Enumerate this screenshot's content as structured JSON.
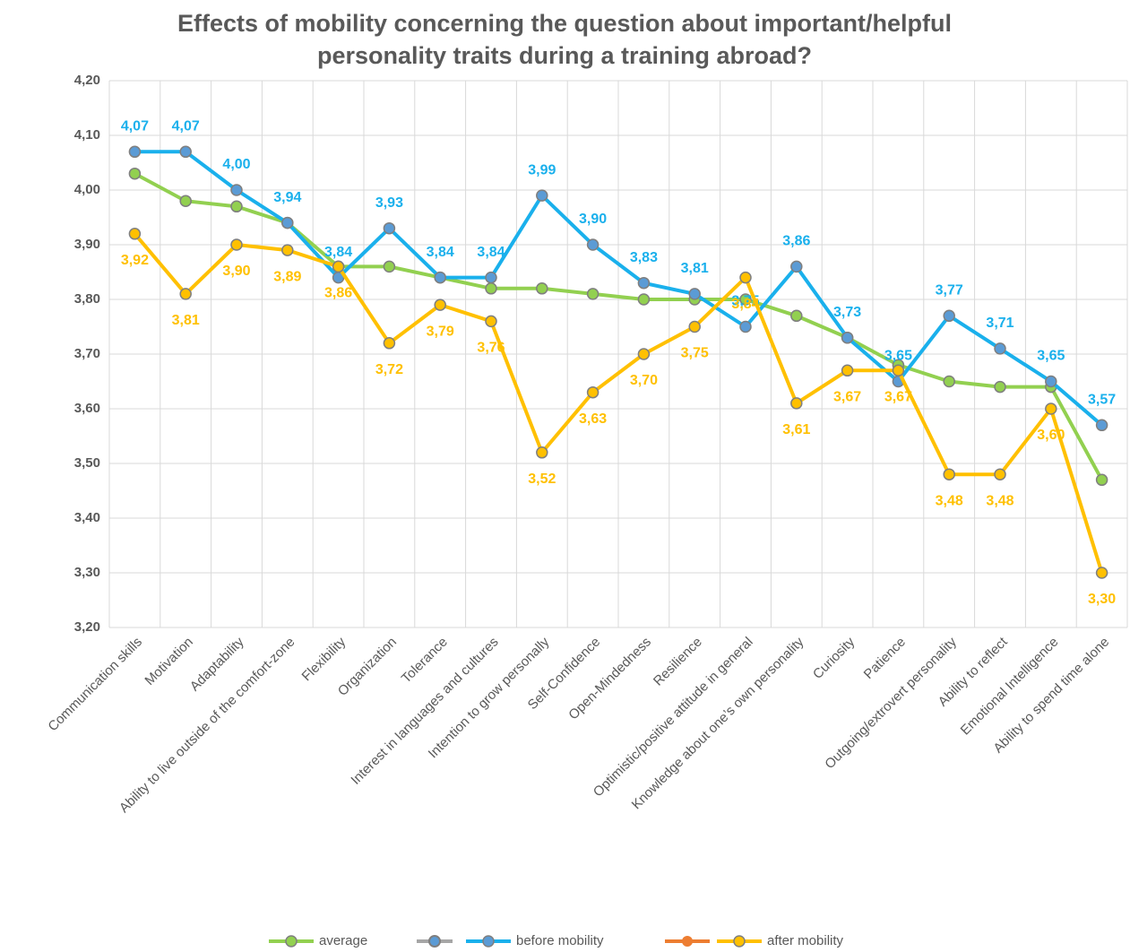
{
  "chart_data": {
    "type": "line",
    "title": "Effects of mobility concerning the question about important/helpful personality traits during a training abroad?",
    "categories": [
      "Communication skills",
      "Motivation",
      "Adaptability",
      "Ability to live outside of the comfort-zone",
      "Flexibility",
      "Organization",
      "Tolerance",
      "Interest in languages and cultures",
      "Intention to grow personally",
      "Self-Confidence",
      "Open-Mindedness",
      "Resilience",
      "Optimistic/positive attitude in general",
      "Knowledge about one’s own personality",
      "Curiosity",
      "Patience",
      "Outgoing/extrovert personality",
      "Ability to reflect",
      "Emotional Intelligence",
      "Ability to spend time alone"
    ],
    "series": [
      {
        "name": "average",
        "color": "#92d050",
        "values": [
          4.03,
          3.98,
          3.97,
          3.94,
          3.86,
          3.86,
          3.84,
          3.82,
          3.82,
          3.81,
          3.8,
          3.8,
          3.8,
          3.77,
          3.73,
          3.68,
          3.65,
          3.64,
          3.64,
          3.47
        ]
      },
      {
        "name": "before mobility",
        "color": "#1ab0ec",
        "values": [
          4.07,
          4.07,
          4.0,
          3.94,
          3.84,
          3.93,
          3.84,
          3.84,
          3.99,
          3.9,
          3.83,
          3.81,
          3.75,
          3.86,
          3.73,
          3.65,
          3.77,
          3.71,
          3.65,
          3.57
        ],
        "value_labels": [
          "4,07",
          "4,07",
          "4,00",
          "3,94",
          "3,84",
          "3,93",
          "3,84",
          "3,84",
          "3,99",
          "3,90",
          "3,83",
          "3,81",
          "3,75",
          "3,86",
          "3,73",
          "3,65",
          "3,77",
          "3,71",
          "3,65",
          "3,57"
        ]
      },
      {
        "name": "after mobility",
        "color": "#ffc000",
        "values": [
          3.92,
          3.81,
          3.9,
          3.89,
          3.86,
          3.72,
          3.79,
          3.76,
          3.52,
          3.63,
          3.7,
          3.75,
          3.84,
          3.61,
          3.67,
          3.67,
          3.48,
          3.48,
          3.6,
          3.3
        ],
        "value_labels": [
          "3,92",
          "3,81",
          "3,90",
          "3,89",
          "3,86",
          "3,72",
          "3,79",
          "3,76",
          "3,52",
          "3,63",
          "3,70",
          "3,75",
          "3,84",
          "3,61",
          "3,67",
          "3,67",
          "3,48",
          "3,48",
          "3,60",
          "3,30"
        ]
      }
    ],
    "ylim": [
      3.2,
      4.2
    ],
    "yticks": [
      {
        "value": 3.2,
        "label": "3,20"
      },
      {
        "value": 3.3,
        "label": "3,30"
      },
      {
        "value": 3.4,
        "label": "3,40"
      },
      {
        "value": 3.5,
        "label": "3,50"
      },
      {
        "value": 3.6,
        "label": "3,60"
      },
      {
        "value": 3.7,
        "label": "3,70"
      },
      {
        "value": 3.8,
        "label": "3,80"
      },
      {
        "value": 3.9,
        "label": "3,90"
      },
      {
        "value": 4.0,
        "label": "4,00"
      },
      {
        "value": 4.1,
        "label": "4,10"
      },
      {
        "value": 4.2,
        "label": "4,20"
      }
    ],
    "grid": true
  }
}
